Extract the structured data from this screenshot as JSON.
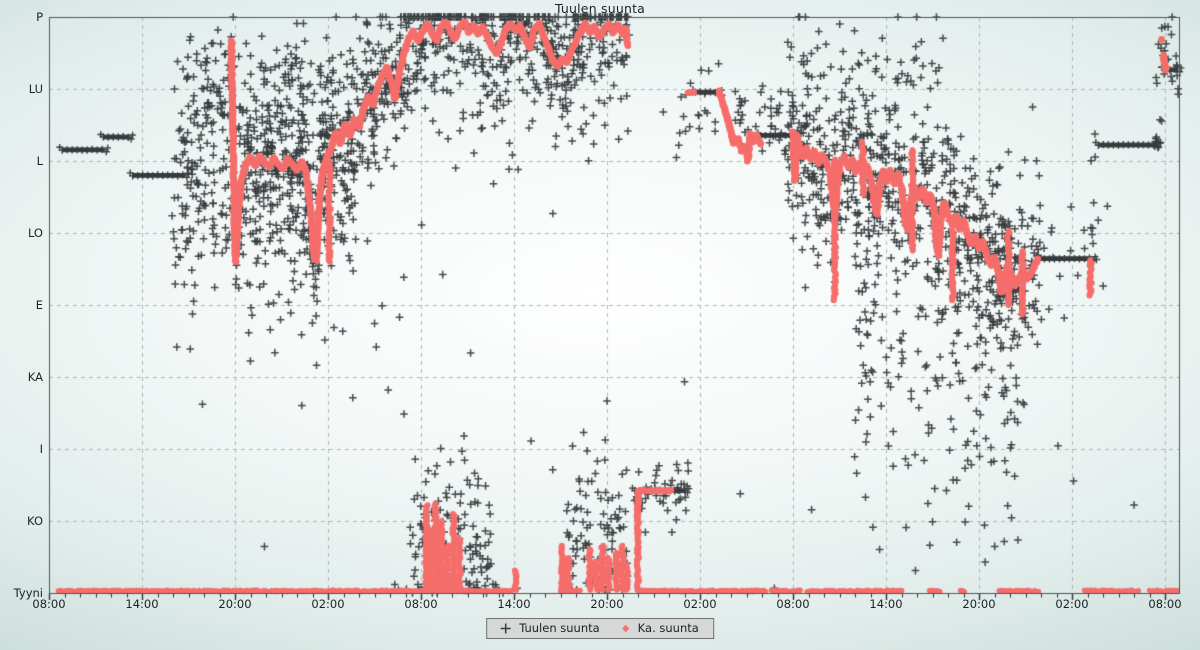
{
  "title": "Tuulen suunta",
  "legend": {
    "series1_label": "Tuulen suunta",
    "series2_label": "Ka. suunta"
  },
  "colors": {
    "cross": "#373b3d",
    "avg": "#f56e6b",
    "grid": "#a7b0ae",
    "frame": "#4e5456",
    "tick": "#2c3133",
    "text": "#1c2123",
    "legend_bg": "#d5d8d6",
    "legend_border": "#6f7572"
  },
  "chart_data": {
    "type": "scatter",
    "title": "Tuulen suunta",
    "legend_position": "bottom",
    "grid": "dashed",
    "x_axis": {
      "tick_labels": [
        "08:00",
        "14:00",
        "20:00",
        "02:00",
        "08:00",
        "14:00",
        "20:00",
        "02:00",
        "08:00",
        "14:00",
        "20:00",
        "02:00",
        "08:00"
      ],
      "major_step_hours": 6,
      "minor_step_hours": 1,
      "hours_total": 72.9
    },
    "y_axis": {
      "tick_labels": [
        "P",
        "LU",
        "L",
        "LO",
        "E",
        "KA",
        "I",
        "KO",
        "Tyyni"
      ],
      "tick_degrees": [
        360,
        315,
        270,
        225,
        180,
        135,
        90,
        45,
        0
      ],
      "range_degrees": [
        0,
        360
      ]
    },
    "series": [
      {
        "name": "Tuulen suunta",
        "marker": "plus",
        "color": "#373b3d"
      },
      {
        "name": "Ka. suunta",
        "marker": "dot",
        "color": "#f56e6b"
      }
    ],
    "avg_segments": [
      [
        [
          11.75,
          345
        ],
        [
          11.85,
          300
        ],
        [
          11.95,
          232
        ],
        [
          12.05,
          207
        ],
        [
          12.2,
          236
        ],
        [
          12.4,
          257
        ],
        [
          12.7,
          268
        ],
        [
          13.0,
          272
        ],
        [
          13.3,
          267
        ],
        [
          13.6,
          273
        ],
        [
          13.9,
          269
        ],
        [
          14.2,
          266
        ],
        [
          14.5,
          272
        ],
        [
          14.8,
          268
        ],
        [
          15.1,
          265
        ],
        [
          15.4,
          271
        ],
        [
          15.7,
          268
        ],
        [
          16.0,
          264
        ],
        [
          16.3,
          270
        ],
        [
          16.6,
          263
        ],
        [
          16.9,
          237
        ],
        [
          17.1,
          210
        ],
        [
          17.25,
          208
        ],
        [
          17.45,
          247
        ],
        [
          17.65,
          263
        ],
        [
          17.9,
          271
        ],
        [
          18.2,
          278
        ],
        [
          18.5,
          288
        ],
        [
          18.8,
          281
        ],
        [
          19.1,
          293
        ],
        [
          19.4,
          286
        ],
        [
          19.7,
          296
        ],
        [
          20.0,
          291
        ],
        [
          20.3,
          303
        ],
        [
          20.6,
          310
        ],
        [
          20.9,
          305
        ],
        [
          21.2,
          316
        ],
        [
          21.5,
          323
        ],
        [
          21.8,
          329
        ],
        [
          22.1,
          319
        ],
        [
          22.3,
          309
        ],
        [
          22.6,
          325
        ],
        [
          22.9,
          337
        ],
        [
          23.2,
          346
        ],
        [
          23.5,
          351
        ],
        [
          23.8,
          345
        ],
        [
          24.1,
          351
        ],
        [
          24.4,
          356
        ],
        [
          24.7,
          350
        ],
        [
          25.0,
          345
        ],
        [
          25.3,
          354
        ],
        [
          25.6,
          357
        ],
        [
          25.9,
          351
        ],
        [
          26.2,
          346
        ],
        [
          26.5,
          354
        ],
        [
          26.8,
          357
        ],
        [
          27.1,
          350
        ],
        [
          27.4,
          355
        ],
        [
          27.7,
          349
        ],
        [
          28.0,
          354
        ],
        [
          28.3,
          347
        ],
        [
          28.6,
          341
        ],
        [
          28.9,
          337
        ],
        [
          29.2,
          345
        ],
        [
          29.5,
          353
        ],
        [
          29.8,
          356
        ],
        [
          30.1,
          351
        ],
        [
          30.4,
          355
        ],
        [
          30.7,
          347
        ],
        [
          31.0,
          341
        ],
        [
          31.3,
          352
        ],
        [
          31.6,
          356
        ],
        [
          31.9,
          348
        ],
        [
          32.2,
          341
        ],
        [
          32.5,
          333
        ],
        [
          32.8,
          329
        ],
        [
          33.1,
          334
        ],
        [
          33.4,
          331
        ],
        [
          33.7,
          338
        ],
        [
          34.0,
          345
        ],
        [
          34.3,
          351
        ],
        [
          34.6,
          356
        ],
        [
          34.9,
          350
        ],
        [
          35.2,
          354
        ],
        [
          35.5,
          347
        ],
        [
          35.8,
          352
        ],
        [
          36.1,
          356
        ],
        [
          36.4,
          350
        ],
        [
          36.7,
          355
        ],
        [
          37.0,
          349
        ],
        [
          37.2,
          353
        ],
        [
          37.35,
          342
        ]
      ],
      [
        [
          37.95,
          48
        ],
        [
          38.0,
          58
        ],
        [
          38.05,
          64
        ],
        [
          38.4,
          64
        ],
        [
          38.8,
          64
        ],
        [
          39.2,
          64
        ],
        [
          39.6,
          64
        ],
        [
          40.0,
          64
        ],
        [
          40.15,
          64
        ]
      ],
      [
        [
          41.2,
          313
        ],
        [
          41.45,
          313
        ],
        [
          41.7,
          313
        ]
      ],
      [
        [
          43.2,
          314
        ],
        [
          43.45,
          307
        ],
        [
          43.7,
          299
        ],
        [
          43.95,
          290
        ],
        [
          44.2,
          281
        ],
        [
          44.45,
          284
        ],
        [
          44.7,
          276
        ],
        [
          44.95,
          279
        ],
        [
          45.1,
          271
        ],
        [
          45.25,
          287
        ],
        [
          45.45,
          282
        ],
        [
          45.65,
          286
        ],
        [
          45.9,
          280
        ]
      ],
      [
        [
          48.0,
          288
        ],
        [
          48.07,
          268
        ],
        [
          48.12,
          258
        ],
        [
          48.18,
          274
        ],
        [
          48.25,
          286
        ],
        [
          48.4,
          280
        ],
        [
          48.65,
          272
        ],
        [
          48.9,
          278
        ],
        [
          49.15,
          271
        ],
        [
          49.4,
          276
        ],
        [
          49.65,
          268
        ],
        [
          49.9,
          274
        ],
        [
          50.15,
          269
        ],
        [
          50.4,
          263
        ],
        [
          50.6,
          243
        ],
        [
          50.72,
          237
        ],
        [
          50.88,
          256
        ],
        [
          51.05,
          268
        ],
        [
          51.3,
          273
        ],
        [
          51.55,
          266
        ],
        [
          51.8,
          271
        ],
        [
          52.05,
          263
        ],
        [
          52.3,
          269
        ],
        [
          52.55,
          261
        ],
        [
          52.8,
          267
        ],
        [
          53.05,
          258
        ],
        [
          53.25,
          243
        ],
        [
          53.42,
          237
        ],
        [
          53.6,
          255
        ],
        [
          53.82,
          264
        ],
        [
          54.05,
          257
        ],
        [
          54.3,
          264
        ],
        [
          54.55,
          256
        ],
        [
          54.8,
          262
        ],
        [
          55.05,
          251
        ],
        [
          55.25,
          232
        ],
        [
          55.42,
          227
        ],
        [
          55.62,
          246
        ],
        [
          55.85,
          254
        ],
        [
          56.1,
          247
        ],
        [
          56.35,
          253
        ],
        [
          56.6,
          244
        ],
        [
          56.85,
          249
        ],
        [
          57.1,
          239
        ],
        [
          57.25,
          217
        ],
        [
          57.4,
          211
        ],
        [
          57.55,
          233
        ],
        [
          57.75,
          244
        ],
        [
          58.0,
          237
        ],
        [
          58.25,
          230
        ],
        [
          58.5,
          236
        ],
        [
          58.75,
          227
        ],
        [
          59.0,
          233
        ],
        [
          59.25,
          224
        ],
        [
          59.5,
          218
        ],
        [
          59.75,
          223
        ],
        [
          60.0,
          215
        ],
        [
          60.25,
          220
        ],
        [
          60.5,
          211
        ],
        [
          60.75,
          205
        ],
        [
          61.0,
          210
        ],
        [
          61.25,
          201
        ],
        [
          61.42,
          188
        ],
        [
          61.6,
          196
        ],
        [
          61.85,
          205
        ],
        [
          62.1,
          198
        ],
        [
          62.35,
          192
        ],
        [
          62.6,
          197
        ],
        [
          62.85,
          202
        ],
        [
          63.1,
          196
        ],
        [
          63.35,
          200
        ],
        [
          63.6,
          205
        ],
        [
          63.85,
          209
        ]
      ],
      [
        [
          71.9,
          336
        ],
        [
          72.0,
          327
        ],
        [
          72.15,
          329
        ]
      ]
    ],
    "avg_streaks": [
      [
        18.1,
        207,
        270
      ],
      [
        24.35,
        2,
        55
      ],
      [
        24.65,
        2,
        40
      ],
      [
        24.95,
        2,
        57
      ],
      [
        25.3,
        2,
        45
      ],
      [
        25.7,
        2,
        30
      ],
      [
        26.1,
        2,
        50
      ],
      [
        26.5,
        2,
        35
      ],
      [
        30.1,
        2,
        15
      ],
      [
        33.1,
        2,
        30
      ],
      [
        33.5,
        2,
        22
      ],
      [
        34.9,
        2,
        28
      ],
      [
        35.3,
        2,
        20
      ],
      [
        35.7,
        2,
        30
      ],
      [
        36.1,
        2,
        22
      ],
      [
        36.6,
        2,
        26
      ],
      [
        37.0,
        2,
        30
      ],
      [
        37.3,
        2,
        18
      ],
      [
        38.0,
        2,
        50
      ],
      [
        50.7,
        183,
        271
      ],
      [
        52.5,
        249,
        283
      ],
      [
        55.7,
        214,
        277
      ],
      [
        58.3,
        183,
        227
      ],
      [
        61.9,
        180,
        227
      ],
      [
        62.8,
        174,
        214
      ],
      [
        67.2,
        186,
        209
      ]
    ],
    "avg_calm_bands": [
      [
        0.6,
        29.9
      ],
      [
        33.0,
        34.3
      ],
      [
        38.0,
        46.3
      ],
      [
        46.6,
        48.5
      ],
      [
        48.9,
        55.1
      ],
      [
        56.8,
        57.5
      ],
      [
        58.8,
        59.1
      ],
      [
        61.3,
        63.9
      ],
      [
        66.8,
        70.3
      ],
      [
        71.0,
        72.8
      ]
    ],
    "avg_points": [
      [
        71.78,
        346
      ],
      [
        45.05,
        270
      ]
    ],
    "const_bars": [
      [
        0.85,
        3.6,
        277
      ],
      [
        3.5,
        5.2,
        285
      ],
      [
        5.4,
        8.8,
        261
      ],
      [
        37.8,
        41.1,
        64
      ],
      [
        41.7,
        43.2,
        313
      ],
      [
        45.9,
        48.2,
        286
      ],
      [
        63.9,
        67.3,
        209
      ],
      [
        67.7,
        71.5,
        280
      ],
      [
        72.0,
        72.85,
        327
      ]
    ],
    "scatter_clusters": [
      {
        "t": [
          8.0,
          11.8
        ],
        "n": 160,
        "mean": [
          [
            8,
            252
          ],
          [
            9.5,
            262
          ],
          [
            11.8,
            272
          ]
        ],
        "sd": 38,
        "clip": [
          150,
          352
        ]
      },
      {
        "t": [
          8.3,
          12.0
        ],
        "n": 40,
        "mean": 320,
        "sd": 14,
        "clip": [
          290,
          352
        ]
      },
      {
        "t": [
          11.8,
          24.0
        ],
        "n": 620,
        "seg": 0,
        "sd": 26,
        "clip": [
          120,
          360
        ]
      },
      {
        "t": [
          12.0,
          20.0
        ],
        "n": 120,
        "mean": [
          [
            12,
            232
          ],
          [
            16,
            236
          ],
          [
            20,
            262
          ]
        ],
        "sd": 28,
        "clip": [
          120,
          340
        ]
      },
      {
        "t": [
          12.0,
          18.5
        ],
        "n": 70,
        "mean": 321,
        "sd": 16,
        "clip": [
          260,
          356
        ]
      },
      {
        "t": [
          12.5,
          23.0
        ],
        "n": 26,
        "mean": 155,
        "sd": 38,
        "clip": [
          60,
          220
        ]
      },
      {
        "t": [
          24.0,
          37.4
        ],
        "n": 520,
        "seg": 0,
        "sd": 22,
        "clip": [
          260,
          360
        ]
      },
      {
        "t": [
          24.0,
          37.2
        ],
        "n": 55,
        "mean": 300,
        "sd": 26,
        "clip": [
          210,
          350
        ]
      },
      {
        "t": [
          23.3,
          28.5
        ],
        "n": 130,
        "mean": [
          [
            23.3,
            30
          ],
          [
            26,
            42
          ],
          [
            28.5,
            24
          ]
        ],
        "sd": 24,
        "clip": [
          2,
          112
        ]
      },
      {
        "t": [
          22.0,
          29.5
        ],
        "n": 28,
        "mean": 3,
        "sd": 3,
        "clip": [
          0,
          14
        ]
      },
      {
        "t": [
          33.2,
          37.3
        ],
        "n": 100,
        "mean": [
          [
            33.2,
            28
          ],
          [
            35,
            46
          ],
          [
            37.3,
            30
          ]
        ],
        "sd": 25,
        "clip": [
          2,
          105
        ]
      },
      {
        "t": [
          37.8,
          41.3
        ],
        "n": 45,
        "mean": 64,
        "sd": 9,
        "clip": [
          38,
          92
        ]
      },
      {
        "t": [
          39.5,
          43.5
        ],
        "n": 22,
        "mean": 302,
        "sd": 20,
        "clip": [
          255,
          345
        ]
      },
      {
        "t": [
          44.0,
          47.6
        ],
        "n": 38,
        "mean": 297,
        "sd": 13,
        "clip": [
          262,
          336
        ]
      },
      {
        "t": [
          47.5,
          64.0
        ],
        "n": 760,
        "seg": 4,
        "sd": 30,
        "clip": [
          55,
          360
        ]
      },
      {
        "t": [
          52.0,
          63.0
        ],
        "n": 170,
        "mean": [
          [
            52,
            160
          ],
          [
            55,
            140
          ],
          [
            58,
            118
          ],
          [
            60,
            108
          ],
          [
            63,
            132
          ]
        ],
        "sd": 45,
        "clip": [
          18,
          225
        ]
      },
      {
        "t": [
          48.0,
          58.0
        ],
        "n": 60,
        "mean": 331,
        "sd": 18,
        "clip": [
          290,
          360
        ]
      },
      {
        "t": [
          64.0,
          67.5
        ],
        "n": 14,
        "mean": 206,
        "sd": 17,
        "clip": [
          160,
          260
        ]
      },
      {
        "t": [
          67.2,
          68.4
        ],
        "n": 10,
        "mean": 240,
        "sd": 34,
        "clip": [
          170,
          300
        ]
      },
      {
        "t": [
          71.3,
          72.9
        ],
        "n": 26,
        "mean": 331,
        "sd": 15,
        "clip": [
          295,
          360
        ]
      },
      {
        "t": [
          71.3,
          71.7
        ],
        "n": 8,
        "mean": 281,
        "sd": 4,
        "clip": [
          270,
          292
        ]
      }
    ],
    "scatter_points": [
      [
        13.9,
        29
      ],
      [
        25.4,
        199
      ],
      [
        31.1,
        95
      ],
      [
        32.5,
        77
      ],
      [
        9.9,
        118
      ],
      [
        19.6,
        122
      ],
      [
        27.2,
        150
      ],
      [
        36.0,
        120
      ],
      [
        41.0,
        132
      ],
      [
        44.6,
        62
      ],
      [
        49.2,
        52
      ],
      [
        55.3,
        41
      ],
      [
        55.9,
        14
      ],
      [
        57.9,
        64
      ],
      [
        59.1,
        78
      ],
      [
        62.1,
        47
      ],
      [
        65.1,
        92
      ],
      [
        66.1,
        70
      ],
      [
        70.0,
        55
      ],
      [
        30.2,
        3
      ],
      [
        46.8,
        3
      ]
    ]
  }
}
